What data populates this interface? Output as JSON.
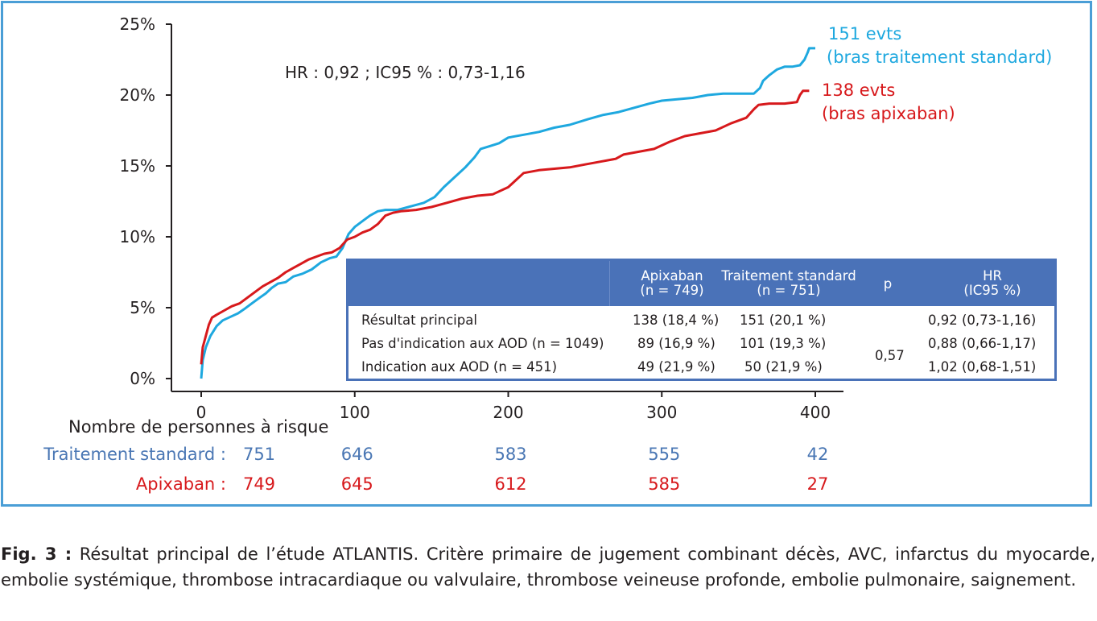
{
  "chart_data": {
    "type": "line",
    "title": "",
    "xlabel": "",
    "ylabel": "",
    "xlim": [
      0,
      420
    ],
    "ylim": [
      0,
      25
    ],
    "x_ticks": [
      "0",
      "100",
      "200",
      "300",
      "400"
    ],
    "y_ticks": [
      "0%",
      "5%",
      "10%",
      "15%",
      "20%",
      "25%"
    ],
    "series": [
      {
        "name": "bras traitement standard",
        "color": "#1ea8df",
        "points": [
          [
            0,
            0
          ],
          [
            1,
            1.3
          ],
          [
            3,
            2.2
          ],
          [
            6,
            3
          ],
          [
            10,
            3.7
          ],
          [
            14,
            4.1
          ],
          [
            18,
            4.3
          ],
          [
            24,
            4.6
          ],
          [
            28,
            4.9
          ],
          [
            33,
            5.3
          ],
          [
            38,
            5.7
          ],
          [
            42,
            6
          ],
          [
            46,
            6.4
          ],
          [
            50,
            6.7
          ],
          [
            55,
            6.8
          ],
          [
            60,
            7.2
          ],
          [
            66,
            7.4
          ],
          [
            72,
            7.7
          ],
          [
            78,
            8.2
          ],
          [
            84,
            8.5
          ],
          [
            88,
            8.6
          ],
          [
            92,
            9.2
          ],
          [
            96,
            10.2
          ],
          [
            100,
            10.7
          ],
          [
            105,
            11.1
          ],
          [
            110,
            11.5
          ],
          [
            115,
            11.8
          ],
          [
            120,
            11.9
          ],
          [
            128,
            11.9
          ],
          [
            135,
            12.1
          ],
          [
            145,
            12.4
          ],
          [
            152,
            12.8
          ],
          [
            158,
            13.5
          ],
          [
            165,
            14.2
          ],
          [
            172,
            14.9
          ],
          [
            178,
            15.6
          ],
          [
            182,
            16.2
          ],
          [
            188,
            16.4
          ],
          [
            194,
            16.6
          ],
          [
            200,
            17
          ],
          [
            210,
            17.2
          ],
          [
            220,
            17.4
          ],
          [
            230,
            17.7
          ],
          [
            240,
            17.9
          ],
          [
            252,
            18.3
          ],
          [
            262,
            18.6
          ],
          [
            272,
            18.8
          ],
          [
            282,
            19.1
          ],
          [
            292,
            19.4
          ],
          [
            300,
            19.6
          ],
          [
            310,
            19.7
          ],
          [
            320,
            19.8
          ],
          [
            330,
            20
          ],
          [
            340,
            20.1
          ],
          [
            350,
            20.1
          ],
          [
            360,
            20.1
          ],
          [
            364,
            20.5
          ],
          [
            366,
            21
          ],
          [
            370,
            21.4
          ],
          [
            375,
            21.8
          ],
          [
            380,
            22
          ],
          [
            385,
            22
          ],
          [
            390,
            22.1
          ],
          [
            393,
            22.5
          ],
          [
            395,
            23
          ],
          [
            396,
            23.3
          ],
          [
            400,
            23.3
          ]
        ]
      },
      {
        "name": "bras apixaban",
        "color": "#d7191c",
        "points": [
          [
            0,
            1
          ],
          [
            1,
            2.2
          ],
          [
            3,
            3
          ],
          [
            5,
            3.8
          ],
          [
            7,
            4.3
          ],
          [
            10,
            4.5
          ],
          [
            15,
            4.8
          ],
          [
            20,
            5.1
          ],
          [
            25,
            5.3
          ],
          [
            30,
            5.7
          ],
          [
            35,
            6.1
          ],
          [
            40,
            6.5
          ],
          [
            45,
            6.8
          ],
          [
            50,
            7.1
          ],
          [
            55,
            7.5
          ],
          [
            60,
            7.8
          ],
          [
            65,
            8.1
          ],
          [
            70,
            8.4
          ],
          [
            75,
            8.6
          ],
          [
            80,
            8.8
          ],
          [
            85,
            8.9
          ],
          [
            90,
            9.2
          ],
          [
            95,
            9.8
          ],
          [
            100,
            10
          ],
          [
            105,
            10.3
          ],
          [
            110,
            10.5
          ],
          [
            115,
            10.9
          ],
          [
            120,
            11.5
          ],
          [
            125,
            11.7
          ],
          [
            130,
            11.8
          ],
          [
            140,
            11.9
          ],
          [
            150,
            12.1
          ],
          [
            160,
            12.4
          ],
          [
            170,
            12.7
          ],
          [
            180,
            12.9
          ],
          [
            190,
            13
          ],
          [
            200,
            13.5
          ],
          [
            205,
            14
          ],
          [
            210,
            14.5
          ],
          [
            220,
            14.7
          ],
          [
            230,
            14.8
          ],
          [
            240,
            14.9
          ],
          [
            250,
            15.1
          ],
          [
            260,
            15.3
          ],
          [
            270,
            15.5
          ],
          [
            275,
            15.8
          ],
          [
            285,
            16
          ],
          [
            295,
            16.2
          ],
          [
            305,
            16.7
          ],
          [
            315,
            17.1
          ],
          [
            325,
            17.3
          ],
          [
            335,
            17.5
          ],
          [
            345,
            18
          ],
          [
            355,
            18.4
          ],
          [
            360,
            19
          ],
          [
            363,
            19.3
          ],
          [
            370,
            19.4
          ],
          [
            380,
            19.4
          ],
          [
            388,
            19.5
          ],
          [
            390,
            20
          ],
          [
            392,
            20.3
          ],
          [
            396,
            20.3
          ]
        ]
      }
    ],
    "annotations": {
      "hr": "HR : 0,92 ; IC95 % : 0,73-1,16",
      "blue_evts": "151 evts",
      "blue_arm": "(bras traitement standard)",
      "red_evts": "138 evts",
      "red_arm": "(bras apixaban)"
    },
    "risk_table": {
      "title": "Nombre de personnes à risque",
      "x": [
        0,
        100,
        200,
        300,
        400
      ],
      "rows": [
        {
          "label": "Traitement standard :",
          "color": "#4a77b4",
          "values": [
            "751",
            "646",
            "583",
            "555",
            "42"
          ]
        },
        {
          "label": "Apixaban :",
          "color": "#d7191c",
          "values": [
            "749",
            "645",
            "612",
            "585",
            "27"
          ]
        }
      ]
    }
  },
  "summary_table": {
    "headers": {
      "apixaban_1": "Apixaban",
      "apixaban_2": "(n = 749)",
      "standard_1": "Traitement standard",
      "standard_2": "(n = 751)",
      "p": "p",
      "hr_1": "HR",
      "hr_2": "(IC95 %)"
    },
    "rows": [
      {
        "label": "Résultat principal",
        "apixaban": "138 (18,4 %)",
        "standard": "151 (20,1 %)",
        "hr": "0,92 (0,73-1,16)"
      },
      {
        "label": "Pas d'indication aux AOD (n = 1049)",
        "apixaban": "89 (16,9 %)",
        "standard": "101 (19,3 %)",
        "hr": "0,88 (0,66-1,17)"
      },
      {
        "label": "Indication aux AOD (n = 451)",
        "apixaban": "49 (21,9 %)",
        "standard": "50 (21,9 %)",
        "hr": "1,02 (0,68-1,51)"
      }
    ],
    "p_value": "0,57"
  },
  "caption": {
    "label": "Fig. 3 :",
    "text": "Résultat principal de l’étude ATLANTIS. Critère primaire de jugement combinant décès, AVC, infarctus du myocarde, embolie systémique, thrombose intracardiaque ou valvulaire, thrombose veineuse profonde, embolie pulmonaire, saignement."
  }
}
